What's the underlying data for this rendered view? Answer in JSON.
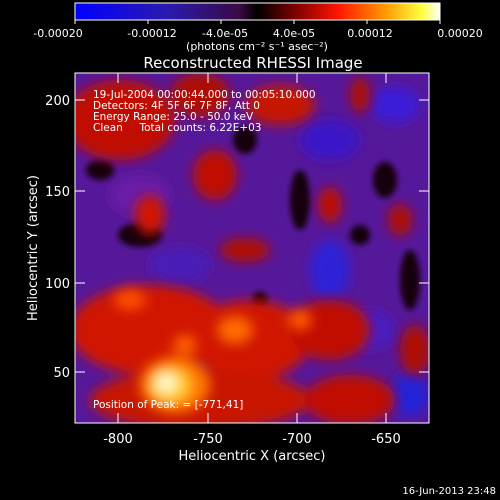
{
  "colorbar": {
    "ticks": [
      "-0.00020",
      "-0.00012",
      "-4.0e-05",
      "4.0e-05",
      "0.00012",
      "0.00020"
    ],
    "units": "(photons cm⁻² s⁻¹ asec⁻²)"
  },
  "title": "Reconstructed RHESSI Image",
  "annotations": [
    "19-Jul-2004 00:00:44.000 to 00:05:10.000",
    "Detectors: 4F 5F 6F 7F 8F, Att 0",
    "Energy Range: 25.0 - 50.0 keV",
    "Clean     Total counts: 6.22E+03"
  ],
  "peak_label": "Position of Peak: = [-771,41]",
  "axes": {
    "xlabel": "Heliocentric X (arcsec)",
    "ylabel": "Heliocentric Y (arcsec)",
    "xticks": [
      "-800",
      "-750",
      "-700",
      "-650"
    ],
    "yticks": [
      "50",
      "100",
      "150",
      "200"
    ],
    "xlim": [
      -825,
      -628
    ],
    "ylim": [
      20,
      218
    ]
  },
  "timestamp": "16-Jun-2013 23:48",
  "peak": {
    "x": -771,
    "y": 41
  },
  "colors": {
    "background": "#000000",
    "foreground": "#ffffff"
  }
}
